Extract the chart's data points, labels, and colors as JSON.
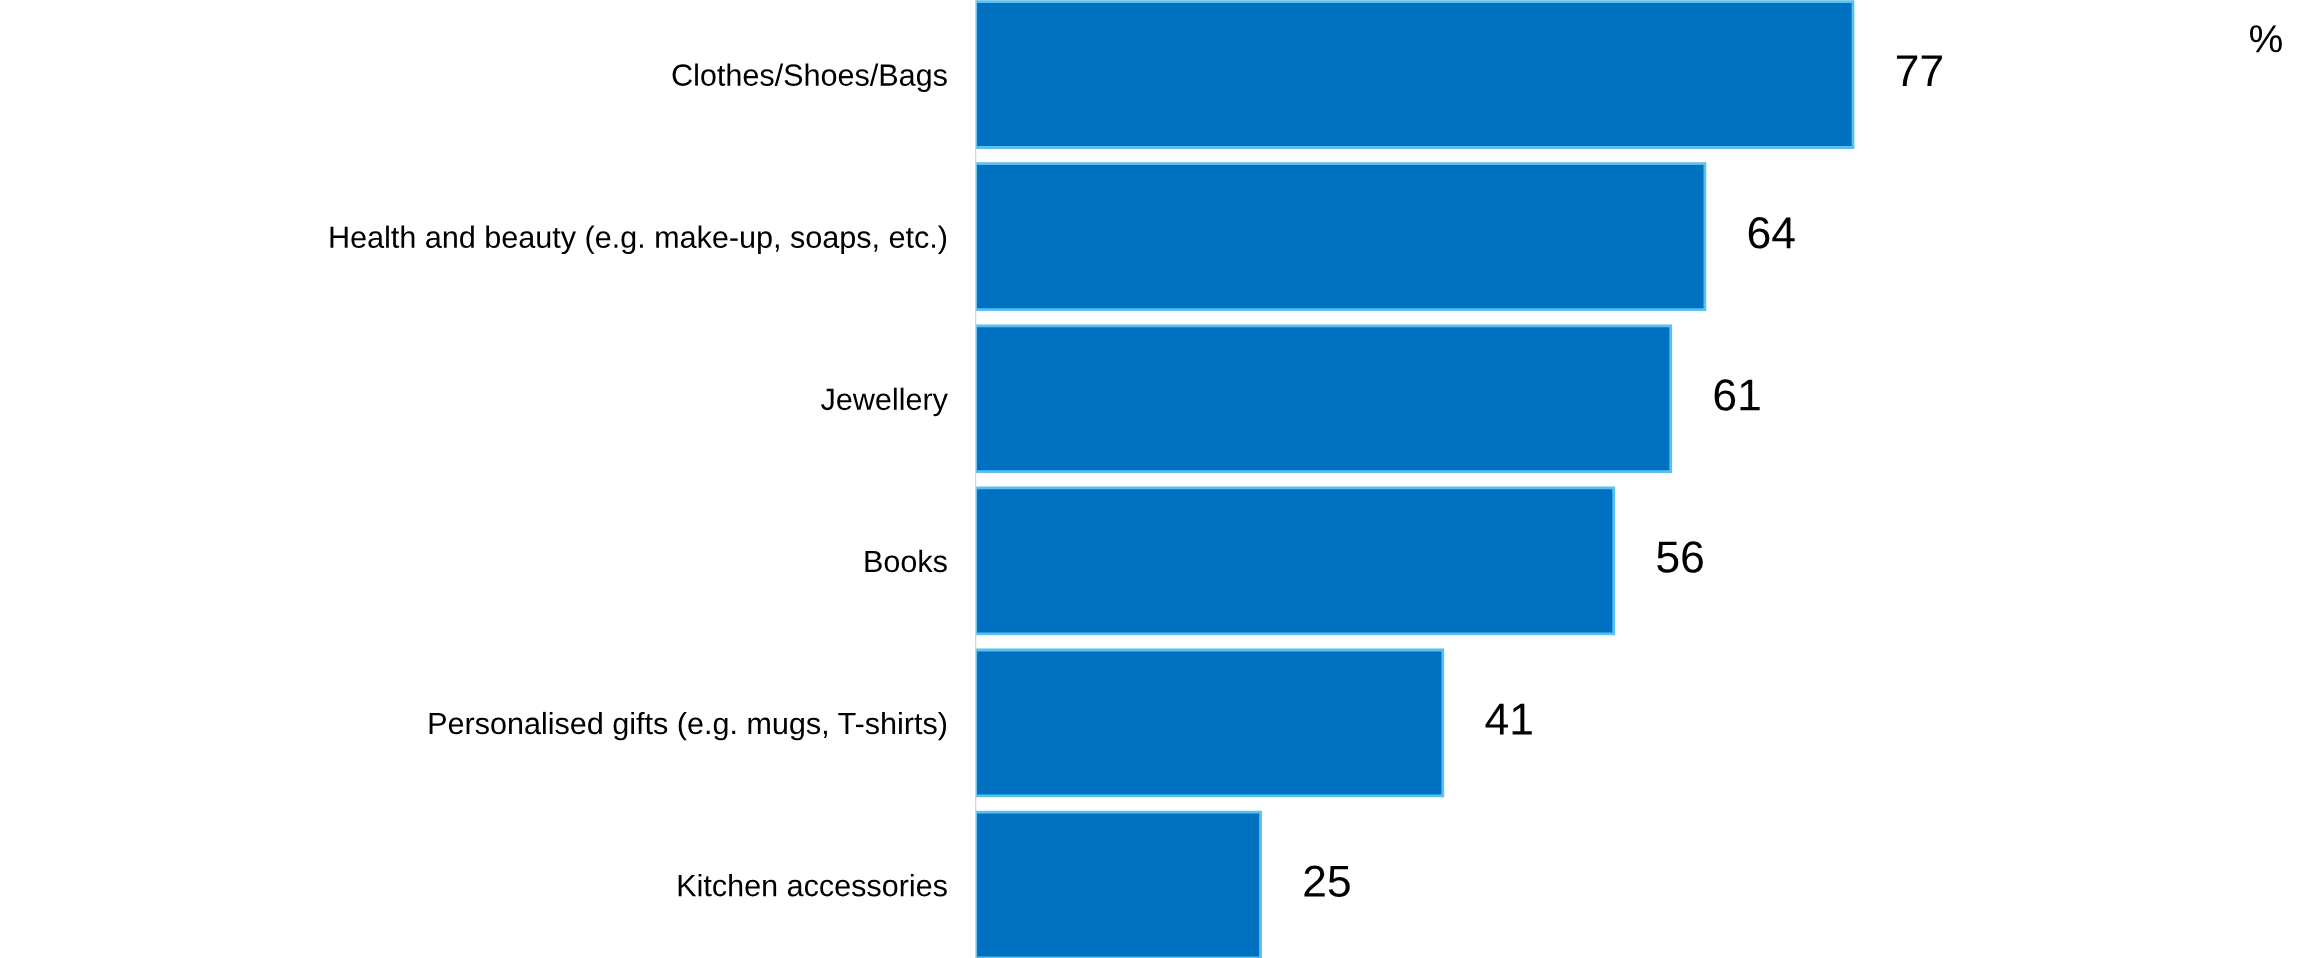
{
  "chart_data": {
    "type": "bar",
    "orientation": "horizontal",
    "categories": [
      "Clothes/Shoes/Bags",
      "Health and beauty (e.g. make-up, soaps, etc.)",
      "Jewellery",
      "Books",
      "Personalised gifts (e.g. mugs, T-shirts)",
      "Kitchen accessories"
    ],
    "values": [
      77,
      64,
      61,
      56,
      41,
      25
    ],
    "color": "#0070c0",
    "data_labels": true,
    "grid": false,
    "annotations": [
      "%"
    ]
  }
}
